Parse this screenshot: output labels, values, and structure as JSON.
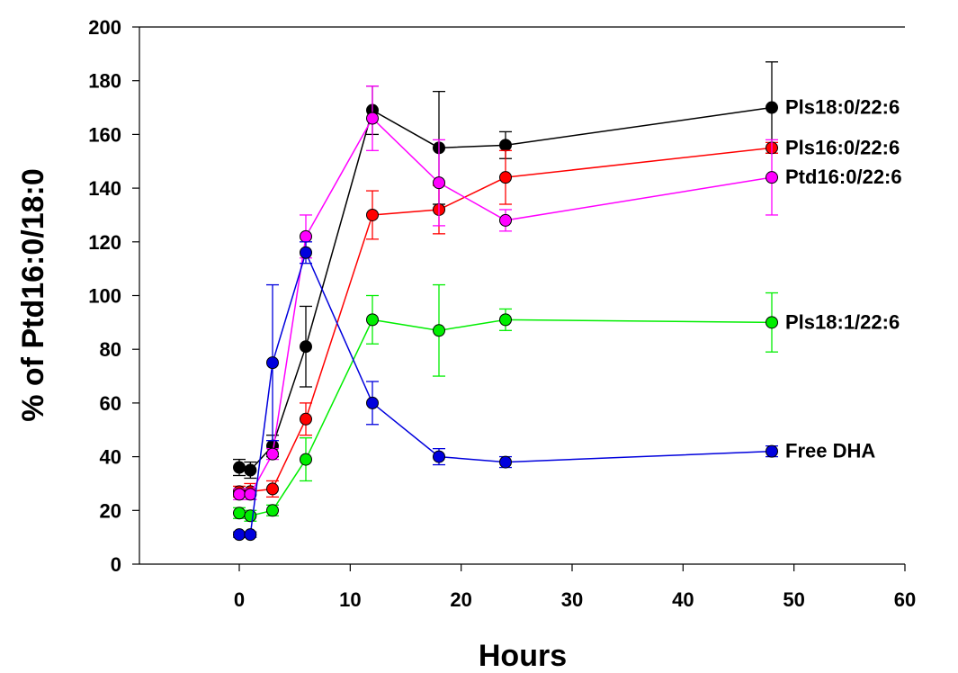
{
  "chart_data": {
    "type": "line",
    "title": "",
    "xlabel": "Hours",
    "ylabel": "% of Ptd16:0/18:0",
    "xlim": [
      -9,
      60
    ],
    "ylim": [
      0,
      200
    ],
    "x_ticks": [
      0,
      10,
      20,
      30,
      40,
      50,
      60
    ],
    "y_ticks": [
      0,
      20,
      40,
      60,
      80,
      100,
      120,
      140,
      160,
      180,
      200
    ],
    "grid": false,
    "legend": "none; series labeled at line ends",
    "series": [
      {
        "name": "Pls18:0/22:6",
        "color": "#000000",
        "x": [
          0,
          1,
          3,
          6,
          12,
          18,
          24,
          48
        ],
        "y": [
          36,
          35,
          44,
          81,
          169,
          155,
          156,
          170
        ],
        "err": [
          3,
          3,
          4,
          15,
          9,
          21,
          5,
          17
        ]
      },
      {
        "name": "Pls16:0/22:6",
        "color": "#ff0000",
        "x": [
          0,
          1,
          3,
          6,
          12,
          18,
          24,
          48
        ],
        "y": [
          27,
          27,
          28,
          54,
          130,
          132,
          144,
          155
        ],
        "err": [
          2,
          3,
          3,
          6,
          9,
          9,
          10,
          2
        ]
      },
      {
        "name": "Ptd16:0/22:6",
        "color": "#ff00ff",
        "x": [
          0,
          1,
          3,
          6,
          12,
          18,
          24,
          48
        ],
        "y": [
          26,
          26,
          41,
          122,
          166,
          142,
          128,
          144
        ],
        "err": [
          2,
          2,
          2,
          8,
          12,
          16,
          4,
          14
        ]
      },
      {
        "name": "Pls18:1/22:6",
        "color": "#00ee00",
        "x": [
          0,
          1,
          3,
          6,
          12,
          18,
          24,
          48
        ],
        "y": [
          19,
          18,
          20,
          39,
          91,
          87,
          91,
          90
        ],
        "err": [
          2,
          2,
          2,
          8,
          9,
          17,
          4,
          11
        ]
      },
      {
        "name": "Free DHA",
        "color": "#0000dd",
        "x": [
          0,
          1,
          3,
          6,
          12,
          18,
          24,
          48
        ],
        "y": [
          11,
          11,
          75,
          116,
          60,
          40,
          38,
          42
        ],
        "err": [
          1,
          1,
          29,
          4,
          8,
          3,
          2,
          2
        ]
      }
    ]
  }
}
